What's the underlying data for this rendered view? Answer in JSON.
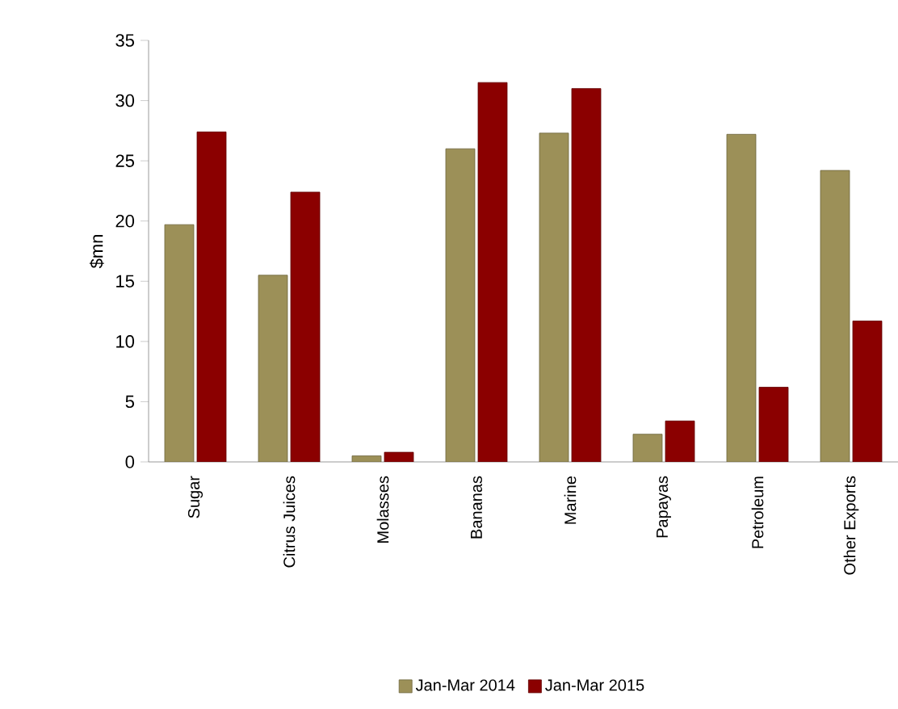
{
  "chart_data": {
    "type": "bar",
    "ylabel": "$mn",
    "categories": [
      "Sugar",
      "Citrus Juices",
      "Molasses",
      "Bananas",
      "Marine",
      "Papayas",
      "Petroleum",
      "Other Exports"
    ],
    "series": [
      {
        "name": "Jan-Mar 2014",
        "color": "#9c9058",
        "values": [
          19.7,
          15.5,
          0.5,
          26,
          27.3,
          2.3,
          27.2,
          24.2
        ]
      },
      {
        "name": "Jan-Mar 2015",
        "color": "#8b0000",
        "values": [
          27.4,
          22.4,
          0.8,
          31.5,
          31,
          3.4,
          6.2,
          11.7
        ]
      }
    ],
    "ylim": [
      0,
      35
    ],
    "yticks": [
      0,
      5,
      10,
      15,
      20,
      25,
      30,
      35
    ],
    "grid": false,
    "legend": "bottom"
  }
}
